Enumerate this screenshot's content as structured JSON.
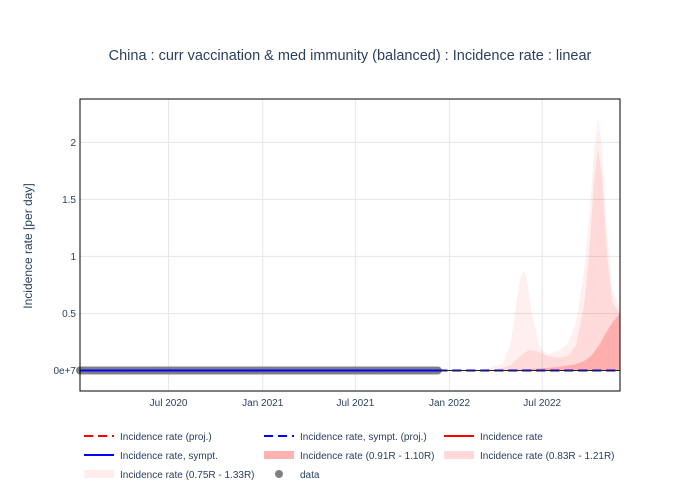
{
  "chart_data": {
    "type": "line",
    "title": "China : curr vaccination & med immunity (balanced) : Incidence rate : linear",
    "ylabel": "Incidence rate [per day]",
    "xlabel": "",
    "x_range": [
      "2020-01-10",
      "2022-11-30"
    ],
    "ylim": [
      -0.18,
      2.38
    ],
    "grid": true,
    "legend_position": "bottom",
    "x_ticks": [
      {
        "date": "2020-07-01",
        "label": "Jul 2020"
      },
      {
        "date": "2021-01-01",
        "label": "Jan 2021"
      },
      {
        "date": "2021-07-01",
        "label": "Jul 2021"
      },
      {
        "date": "2022-01-01",
        "label": "Jan 2022"
      },
      {
        "date": "2022-07-01",
        "label": "Jul 2022"
      }
    ],
    "y_ticks": [
      {
        "value": 0,
        "label": "0e+7"
      },
      {
        "value": 0.5,
        "label": "0.5"
      },
      {
        "value": 1,
        "label": "1"
      },
      {
        "value": 1.5,
        "label": "1.5"
      },
      {
        "value": 2,
        "label": "2"
      }
    ],
    "bands": [
      {
        "name": "Incidence rate (0.75R - 1.33R)",
        "color": "#ff0000",
        "opacity": 0.06,
        "x": [
          "2021-12-10",
          "2022-03-01",
          "2022-04-15",
          "2022-05-01",
          "2022-05-10",
          "2022-05-20",
          "2022-05-26",
          "2022-06-01",
          "2022-06-10",
          "2022-06-25",
          "2022-07-10",
          "2022-08-01",
          "2022-08-20",
          "2022-09-05",
          "2022-09-20",
          "2022-10-01",
          "2022-10-10",
          "2022-10-18",
          "2022-10-26",
          "2022-11-05",
          "2022-11-15",
          "2022-11-30"
        ],
        "upper": [
          0.0,
          0.0,
          0.06,
          0.25,
          0.55,
          0.82,
          0.88,
          0.8,
          0.52,
          0.22,
          0.14,
          0.17,
          0.23,
          0.42,
          0.85,
          1.35,
          1.9,
          2.22,
          1.95,
          1.2,
          0.7,
          0.55
        ],
        "lower": [
          0.0,
          0.0,
          0.0,
          0.0,
          0.0,
          0.0,
          0.0,
          0.0,
          0.0,
          0.0,
          0.0,
          0.0,
          0.0,
          0.0,
          0.0,
          0.0,
          0.0,
          0.0,
          0.0,
          0.0,
          0.0,
          0.0
        ]
      },
      {
        "name": "Incidence rate (0.83R - 1.21R)",
        "color": "#ff0000",
        "opacity": 0.09,
        "x": [
          "2021-12-10",
          "2022-04-01",
          "2022-05-01",
          "2022-05-20",
          "2022-06-05",
          "2022-06-20",
          "2022-07-10",
          "2022-08-01",
          "2022-08-20",
          "2022-09-05",
          "2022-09-20",
          "2022-10-01",
          "2022-10-10",
          "2022-10-18",
          "2022-10-26",
          "2022-11-05",
          "2022-11-15",
          "2022-11-30"
        ],
        "upper": [
          0.0,
          0.0,
          0.05,
          0.13,
          0.18,
          0.17,
          0.13,
          0.11,
          0.13,
          0.22,
          0.55,
          1.05,
          1.65,
          1.95,
          1.7,
          1.0,
          0.6,
          0.5
        ],
        "lower": [
          0.0,
          0.0,
          0.0,
          0.0,
          0.0,
          0.0,
          0.0,
          0.0,
          0.0,
          0.0,
          0.0,
          0.0,
          0.0,
          0.0,
          0.0,
          0.0,
          0.0,
          0.0
        ]
      },
      {
        "name": "Incidence rate (0.91R - 1.10R)",
        "color": "#ff0000",
        "opacity": 0.2,
        "x": [
          "2021-12-10",
          "2022-05-01",
          "2022-06-01",
          "2022-07-01",
          "2022-08-01",
          "2022-09-01",
          "2022-09-20",
          "2022-10-05",
          "2022-10-20",
          "2022-11-01",
          "2022-11-15",
          "2022-11-30"
        ],
        "upper": [
          0.0,
          0.0,
          0.01,
          0.02,
          0.03,
          0.05,
          0.08,
          0.13,
          0.22,
          0.32,
          0.42,
          0.5
        ],
        "lower": [
          0.0,
          0.0,
          0.0,
          0.0,
          0.0,
          0.0,
          0.0,
          0.0,
          0.0,
          0.0,
          0.0,
          0.0
        ]
      }
    ],
    "series": [
      {
        "name": "Incidence rate (proj.)",
        "color": "#ff0000",
        "dash": "dash",
        "x": [
          "2021-12-10",
          "2022-11-30"
        ],
        "y": [
          0.0,
          0.0
        ]
      },
      {
        "name": "Incidence rate, sympt. (proj.)",
        "color": "#0000ff",
        "dash": "dash",
        "x": [
          "2021-12-10",
          "2022-11-30"
        ],
        "y": [
          0.0,
          0.0
        ]
      },
      {
        "name": "Incidence rate",
        "color": "#ff0000",
        "dash": "solid",
        "x": [
          "2020-01-10",
          "2021-12-10"
        ],
        "y": [
          0.0,
          0.0
        ]
      },
      {
        "name": "Incidence rate, sympt.",
        "color": "#0000ff",
        "dash": "solid",
        "x": [
          "2020-01-10",
          "2021-12-10"
        ],
        "y": [
          0.0,
          0.0
        ]
      }
    ],
    "data_points": {
      "name": "data",
      "color": "#808080",
      "x_start": "2020-01-10",
      "x_end": "2021-12-10",
      "y": 0.0
    },
    "legend": [
      {
        "name": "Incidence rate (proj.)",
        "kind": "dash",
        "color": "#ff0000"
      },
      {
        "name": "Incidence rate, sympt. (proj.)",
        "kind": "dash",
        "color": "#0000ff"
      },
      {
        "name": "Incidence rate",
        "kind": "line",
        "color": "#ff0000"
      },
      {
        "name": "Incidence rate, sympt.",
        "kind": "line",
        "color": "#0000ff"
      },
      {
        "name": "Incidence rate (0.91R - 1.10R)",
        "kind": "band",
        "color": "#ff0000",
        "opacity": 0.3
      },
      {
        "name": "Incidence rate (0.83R - 1.21R)",
        "kind": "band",
        "color": "#ff0000",
        "opacity": 0.15
      },
      {
        "name": "Incidence rate (0.75R - 1.33R)",
        "kind": "band",
        "color": "#ff0000",
        "opacity": 0.07
      },
      {
        "name": "data",
        "kind": "marker",
        "color": "#808080"
      }
    ]
  }
}
